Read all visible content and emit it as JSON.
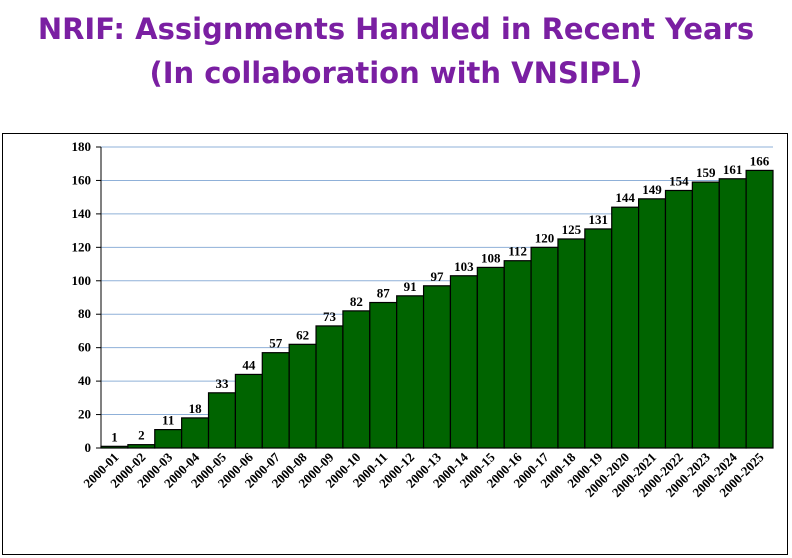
{
  "chart_data": {
    "type": "bar",
    "title": "NRIF: Assignments Handled in Recent Years",
    "subtitle": "(In collaboration with VNSIPL)",
    "categories": [
      "2000-01",
      "2000-02",
      "2000-03",
      "2000-04",
      "2000-05",
      "2000-06",
      "2000-07",
      "2000-08",
      "2000-09",
      "2000-10",
      "2000-11",
      "2000-12",
      "2000-13",
      "2000-14",
      "2000-15",
      "2000-16",
      "2000-17",
      "2000-18",
      "2000-19",
      "2000-2020",
      "2000-2021",
      "2000-2022",
      "2000-2023",
      "2000-2024",
      "2000-2025"
    ],
    "values": [
      1,
      2,
      11,
      18,
      33,
      44,
      57,
      62,
      73,
      82,
      87,
      91,
      97,
      103,
      108,
      112,
      120,
      125,
      131,
      144,
      149,
      154,
      159,
      161,
      166
    ],
    "color": "#006400",
    "ylim": [
      0,
      180
    ],
    "yticks": [
      0,
      20,
      40,
      60,
      80,
      100,
      120,
      140,
      160,
      180
    ],
    "grid": true
  }
}
